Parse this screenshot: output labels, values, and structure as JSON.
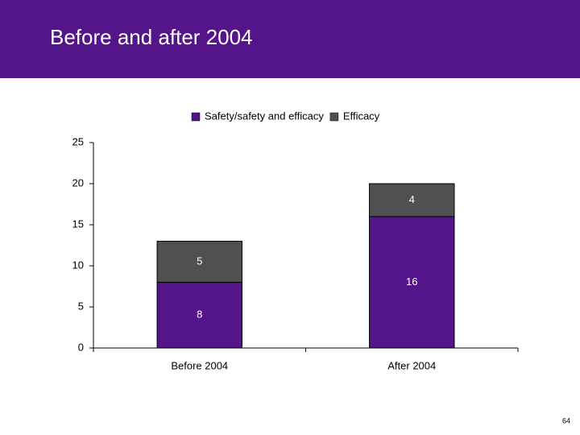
{
  "chart_data": {
    "type": "stacked-bar",
    "title": "Before and after 2004",
    "categories": [
      "Before 2004",
      "After 2004"
    ],
    "series": [
      {
        "name": "Safety/safety and efficacy",
        "color": "#55158a",
        "values": [
          8,
          16
        ]
      },
      {
        "name": "Efficacy",
        "color": "#505050",
        "values": [
          5,
          4
        ]
      }
    ],
    "ylim": [
      0,
      25
    ],
    "yticks": [
      0,
      5,
      10,
      15,
      20,
      25
    ],
    "legend": "top"
  },
  "slide": {
    "page_number": "64"
  }
}
